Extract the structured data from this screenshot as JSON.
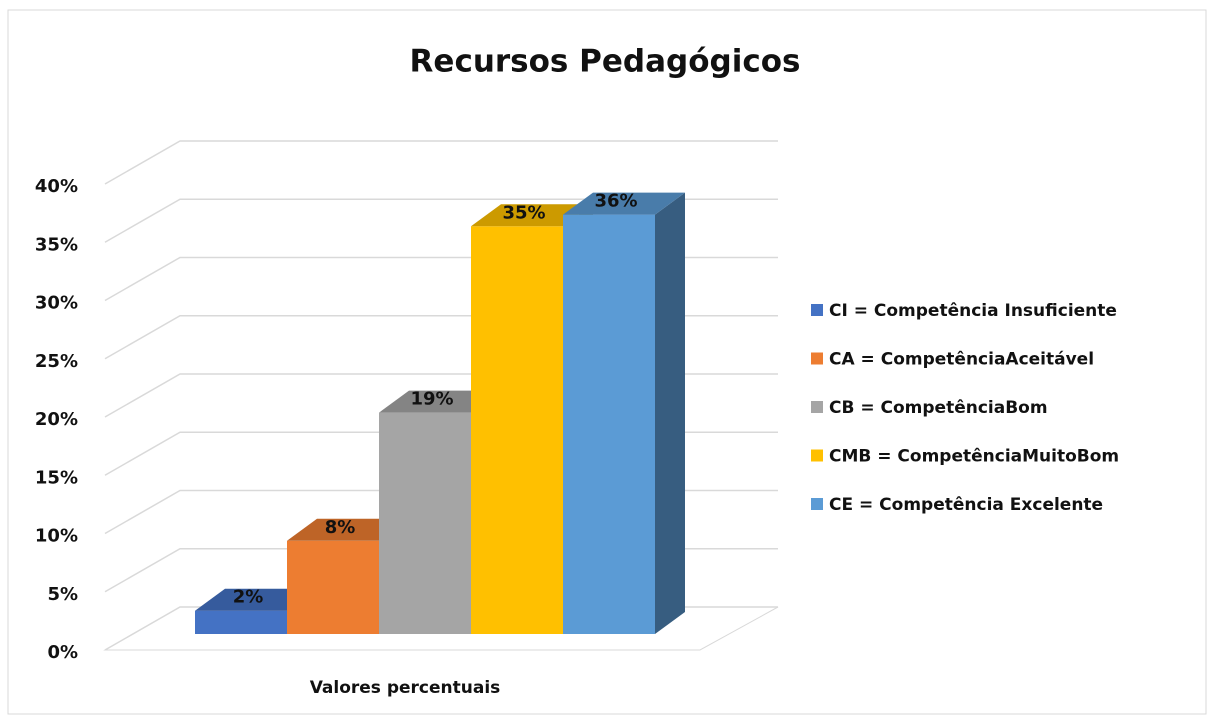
{
  "chart_data": {
    "type": "bar3d",
    "title": "Recursos Pedagógicos",
    "categories": [
      "Valores percentuais"
    ],
    "series": [
      {
        "name": "CI = Competência Insuficiente",
        "color": "#4472c4",
        "values": [
          2
        ],
        "value_labels": [
          "2%"
        ]
      },
      {
        "name": "CA = CompetênciaAceitável",
        "color": "#ed7d31",
        "values": [
          8
        ],
        "value_labels": [
          "8%"
        ]
      },
      {
        "name": "CB = CompetênciaBom",
        "color": "#a5a5a5",
        "values": [
          19
        ],
        "value_labels": [
          "19%"
        ]
      },
      {
        "name": "CMB = CompetênciaMuitoBom",
        "color": "#ffc000",
        "values": [
          35
        ],
        "value_labels": [
          "35%"
        ]
      },
      {
        "name": "CE = Competência Excelente",
        "color": "#5b9bd5",
        "values": [
          36
        ],
        "value_labels": [
          "36%"
        ]
      }
    ],
    "ylim": [
      0,
      40
    ],
    "yticks": [
      {
        "value": 0,
        "label": "0%"
      },
      {
        "value": 5,
        "label": "5%"
      },
      {
        "value": 10,
        "label": "10%"
      },
      {
        "value": 15,
        "label": "15%"
      },
      {
        "value": 20,
        "label": "20%"
      },
      {
        "value": 25,
        "label": "25%"
      },
      {
        "value": 30,
        "label": "30%"
      },
      {
        "value": 35,
        "label": "35%"
      },
      {
        "value": 40,
        "label": "40%"
      }
    ],
    "grid": true,
    "legend": "right"
  }
}
